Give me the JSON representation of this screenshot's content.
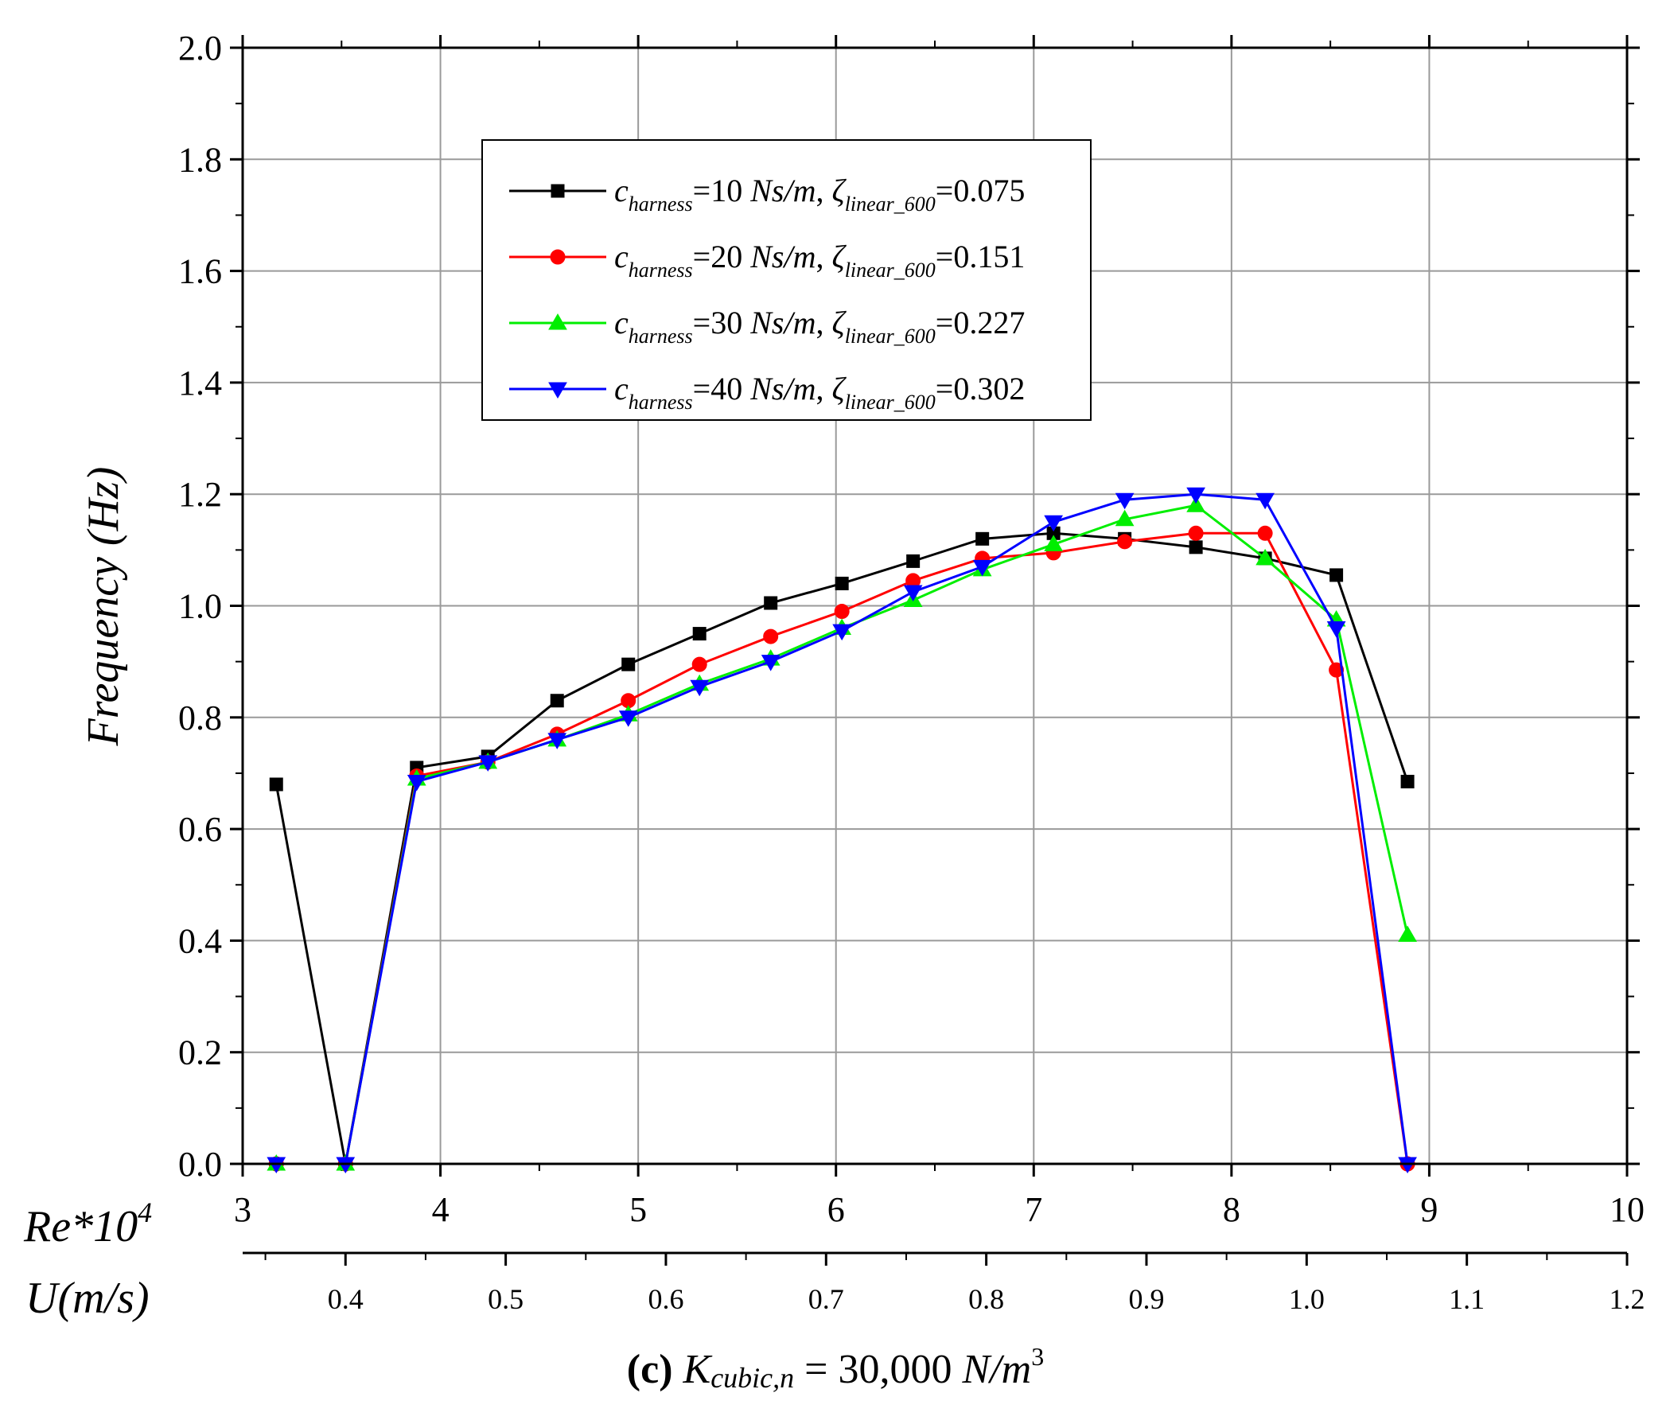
{
  "chart_data": {
    "type": "line",
    "ylabel": "Frequency (Hz)",
    "xlabel": "Re*10",
    "xlabel_superscript": "4",
    "ylim": [
      0.0,
      2.0
    ],
    "xlim": [
      3,
      10
    ],
    "yticks": [
      "0.0",
      "0.2",
      "0.4",
      "0.6",
      "0.8",
      "1.0",
      "1.2",
      "1.4",
      "1.6",
      "1.8",
      "2.0"
    ],
    "xticks": [
      "3",
      "4",
      "5",
      "6",
      "7",
      "8",
      "9",
      "10"
    ],
    "grid": true,
    "secondary_xaxis": {
      "label": "U(m/s)",
      "ticks": [
        {
          "label": "0.4",
          "re": 3.52
        },
        {
          "label": "0.5",
          "re": 4.33
        },
        {
          "label": "0.6",
          "re": 5.14
        },
        {
          "label": "0.7",
          "re": 5.95
        },
        {
          "label": "0.8",
          "re": 6.76
        },
        {
          "label": "0.9",
          "re": 7.57
        },
        {
          "label": "1.0",
          "re": 8.38
        },
        {
          "label": "1.1",
          "re": 9.19
        },
        {
          "label": "1.2",
          "re": 10.0
        }
      ]
    },
    "x": [
      3.17,
      3.52,
      3.88,
      4.24,
      4.59,
      4.95,
      5.31,
      5.67,
      6.03,
      6.39,
      6.74,
      7.1,
      7.46,
      7.82,
      8.17,
      8.53,
      8.89
    ],
    "series": [
      {
        "name_main": "c",
        "name_sub": "harness",
        "name_rest": "=10 ",
        "name_unit": "Ns/m",
        "name_zeta": "ζ",
        "name_zeta_sub": "linear_600",
        "name_value": "=0.075",
        "color": "#000000",
        "marker": "square",
        "values": [
          0.68,
          0.0,
          0.71,
          0.73,
          0.83,
          0.895,
          0.95,
          1.005,
          1.04,
          1.08,
          1.12,
          1.13,
          1.12,
          1.105,
          1.085,
          1.055,
          0.685
        ]
      },
      {
        "name_main": "c",
        "name_sub": "harness",
        "name_rest": "=20 ",
        "name_unit": "Ns/m",
        "name_zeta": "ζ",
        "name_zeta_sub": "linear_600",
        "name_value": "=0.151",
        "color": "#ff0000",
        "marker": "circle",
        "values": [
          0.0,
          0.0,
          0.695,
          0.72,
          0.77,
          0.83,
          0.895,
          0.945,
          0.99,
          1.045,
          1.085,
          1.095,
          1.115,
          1.13,
          1.13,
          0.885,
          0.0
        ]
      },
      {
        "name_main": "c",
        "name_sub": "harness",
        "name_rest": "=30 ",
        "name_unit": "Ns/m",
        "name_zeta": "ζ",
        "name_zeta_sub": "linear_600",
        "name_value": "=0.227",
        "color": "#00ee00",
        "marker": "triangle-up",
        "values": [
          0.0,
          0.0,
          0.69,
          0.72,
          0.76,
          0.805,
          0.86,
          0.905,
          0.96,
          1.01,
          1.065,
          1.11,
          1.155,
          1.18,
          1.085,
          0.975,
          0.41
        ]
      },
      {
        "name_main": "c",
        "name_sub": "harness",
        "name_rest": "=40 ",
        "name_unit": "Ns/m",
        "name_zeta": "ζ",
        "name_zeta_sub": "linear_600",
        "name_value": "=0.302",
        "color": "#0000ff",
        "marker": "triangle-down",
        "values": [
          0.0,
          0.0,
          0.685,
          0.72,
          0.76,
          0.8,
          0.855,
          0.9,
          0.955,
          1.025,
          1.07,
          1.15,
          1.19,
          1.2,
          1.19,
          0.96,
          0.0
        ]
      }
    ]
  },
  "caption": {
    "label": "(c)",
    "k_main": "K",
    "k_sub": "cubic,n",
    "equals": " = 30,000 ",
    "unit_main": "N/m",
    "unit_sup": "3"
  }
}
